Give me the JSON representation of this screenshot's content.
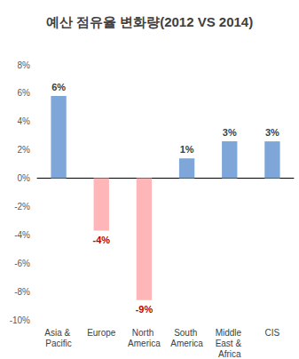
{
  "chart_data": {
    "type": "bar",
    "title": "예산 점유율 변화량(2012 VS 2014)",
    "categories": [
      "Asia & Pacific",
      "Europe",
      "North America",
      "South America",
      "Middle East & Africa",
      "CIS"
    ],
    "values": [
      5.8,
      -3.7,
      -8.6,
      1.4,
      2.6,
      2.6
    ],
    "value_labels": [
      "6%",
      "-4%",
      "-9%",
      "1%",
      "3%",
      "3%"
    ],
    "colors": [
      "#7ea6d8",
      "#ffb6b9",
      "#ffb6b9",
      "#7ea6d8",
      "#7ea6d8",
      "#7ea6d8"
    ],
    "ylim": [
      -10,
      8
    ],
    "yticks": [
      {
        "value": -10,
        "label": "-10%"
      },
      {
        "value": -8,
        "label": "-8%"
      },
      {
        "value": -6,
        "label": "-6%"
      },
      {
        "value": -4,
        "label": "-4%"
      },
      {
        "value": -2,
        "label": "-2%"
      },
      {
        "value": 0,
        "label": "0%"
      },
      {
        "value": 2,
        "label": "2%"
      },
      {
        "value": 4,
        "label": "4%"
      },
      {
        "value": 6,
        "label": "6%"
      },
      {
        "value": 8,
        "label": "8%"
      }
    ],
    "grid": false,
    "data_labels": true
  }
}
